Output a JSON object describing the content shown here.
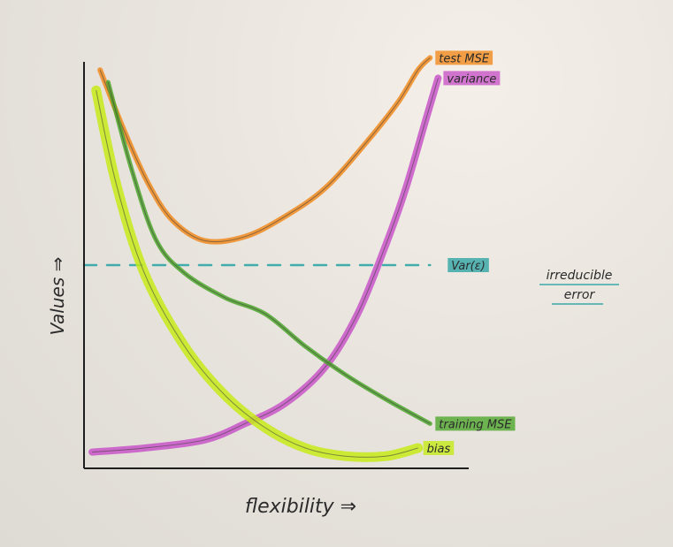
{
  "chart_data": {
    "type": "line",
    "xlabel": "flexibility ⇒",
    "ylabel": "Values ⇒",
    "xlim": [
      0,
      10
    ],
    "ylim": [
      0,
      10
    ],
    "grid": false,
    "legend": "inline-right",
    "series": [
      {
        "name": "test MSE",
        "color": "#f08a1e",
        "x": [
          0.4,
          1.0,
          1.6,
          2.2,
          3.0,
          4.0,
          5.0,
          6.0,
          7.0,
          7.8,
          8.3,
          8.6
        ],
        "y": [
          9.8,
          8.3,
          7.0,
          6.1,
          5.6,
          5.7,
          6.2,
          6.9,
          8.0,
          9.0,
          9.8,
          10.1
        ]
      },
      {
        "name": "variance",
        "color": "#c855c8",
        "x": [
          0.2,
          1.5,
          3.0,
          4.0,
          5.0,
          6.0,
          6.8,
          7.5,
          8.0,
          8.5,
          8.8
        ],
        "y": [
          0.4,
          0.5,
          0.7,
          1.1,
          1.6,
          2.5,
          3.8,
          5.5,
          6.9,
          8.6,
          9.6
        ]
      },
      {
        "name": "Var(ε)",
        "color": "#2fa5a5",
        "x": [
          0.0,
          8.6
        ],
        "y": [
          5.0,
          5.0
        ]
      },
      {
        "name": "training MSE",
        "color": "#4ea62d",
        "x": [
          0.6,
          1.2,
          1.8,
          2.5,
          3.5,
          4.5,
          5.5,
          6.5,
          7.5,
          8.6
        ],
        "y": [
          9.5,
          7.3,
          5.6,
          4.8,
          4.2,
          3.8,
          3.0,
          2.3,
          1.7,
          1.1
        ]
      },
      {
        "name": "bias",
        "color": "#c6ea18",
        "x": [
          0.3,
          0.8,
          1.5,
          2.5,
          3.5,
          4.5,
          5.5,
          6.5,
          7.5,
          8.3
        ],
        "y": [
          9.3,
          7.0,
          4.8,
          3.0,
          1.8,
          1.0,
          0.5,
          0.3,
          0.3,
          0.5
        ]
      }
    ],
    "annotations": [
      {
        "text": "irreducible"
      },
      {
        "text": "error"
      }
    ]
  }
}
